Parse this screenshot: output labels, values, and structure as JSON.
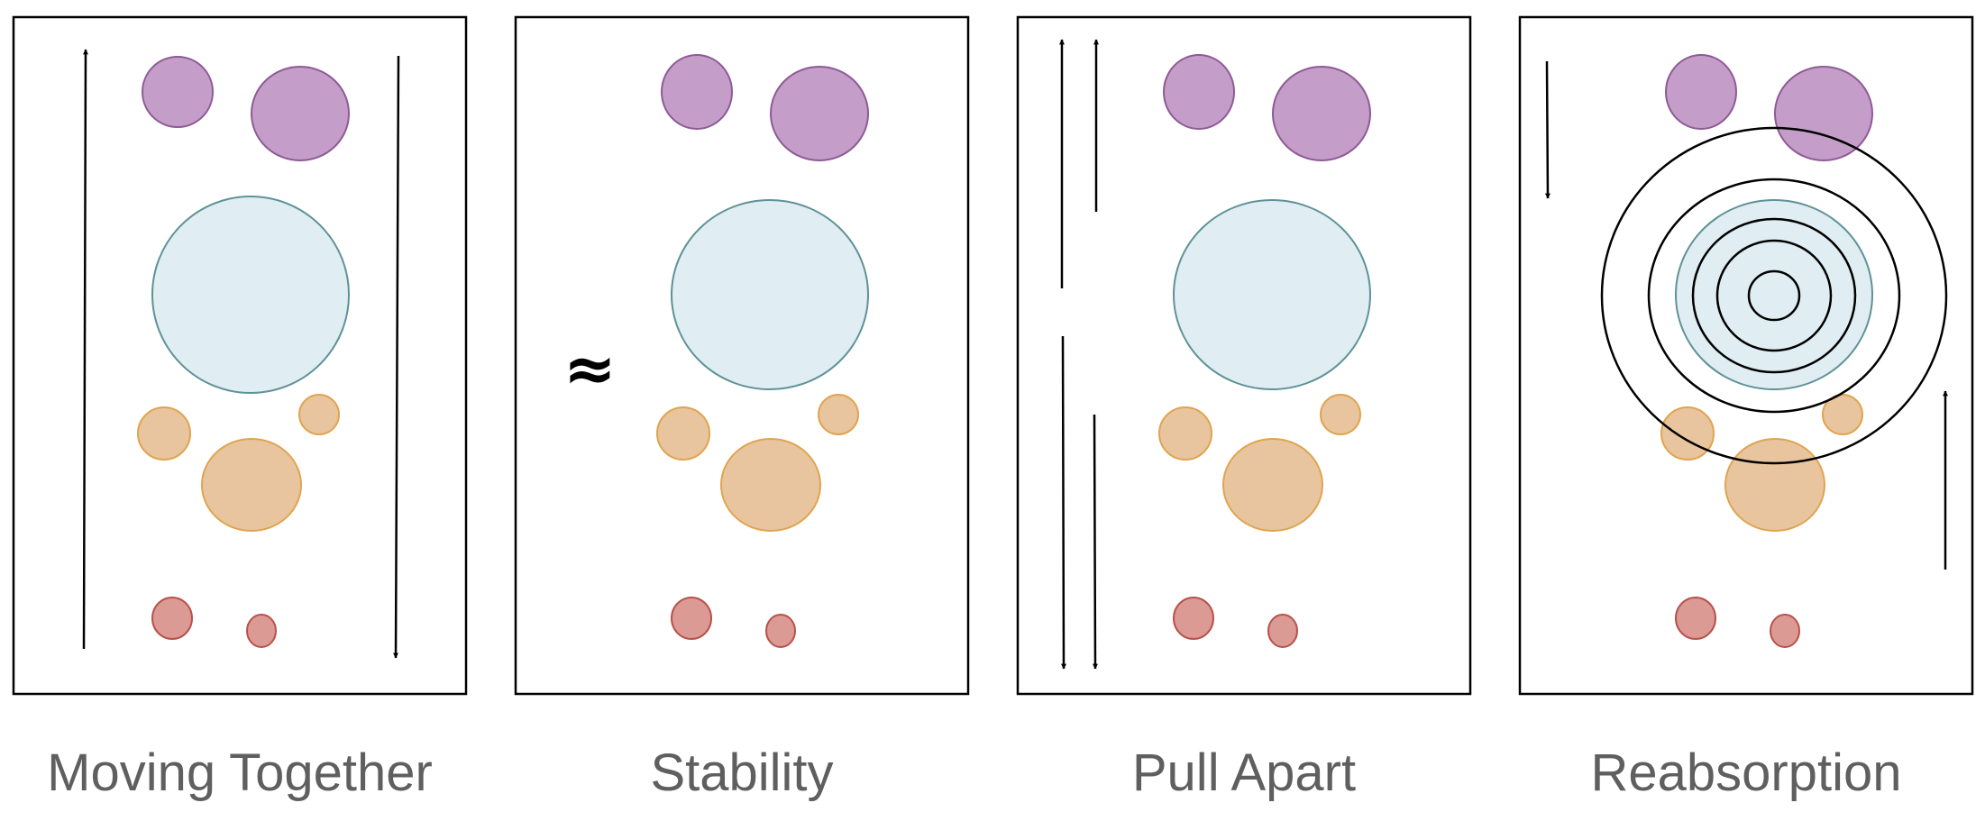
{
  "panels": [
    {
      "name": "moving-together",
      "label": "Moving Together"
    },
    {
      "name": "stability",
      "label": "Stability",
      "symbol": "≈"
    },
    {
      "name": "pull-apart",
      "label": "Pull Apart"
    },
    {
      "name": "reabsorption",
      "label": "Reabsorption"
    }
  ],
  "colors": {
    "purple_fill": "#c49ec8",
    "purple_stroke": "#8e5a97",
    "blue_fill": "#e0edf2",
    "blue_stroke": "#5e9297",
    "orange_fill": "#e8c59e",
    "orange_stroke": "#e0a450",
    "red_fill": "#dc9a94",
    "red_stroke": "#b8514b",
    "line": "#000000",
    "label_text": "#5f5f5f"
  }
}
